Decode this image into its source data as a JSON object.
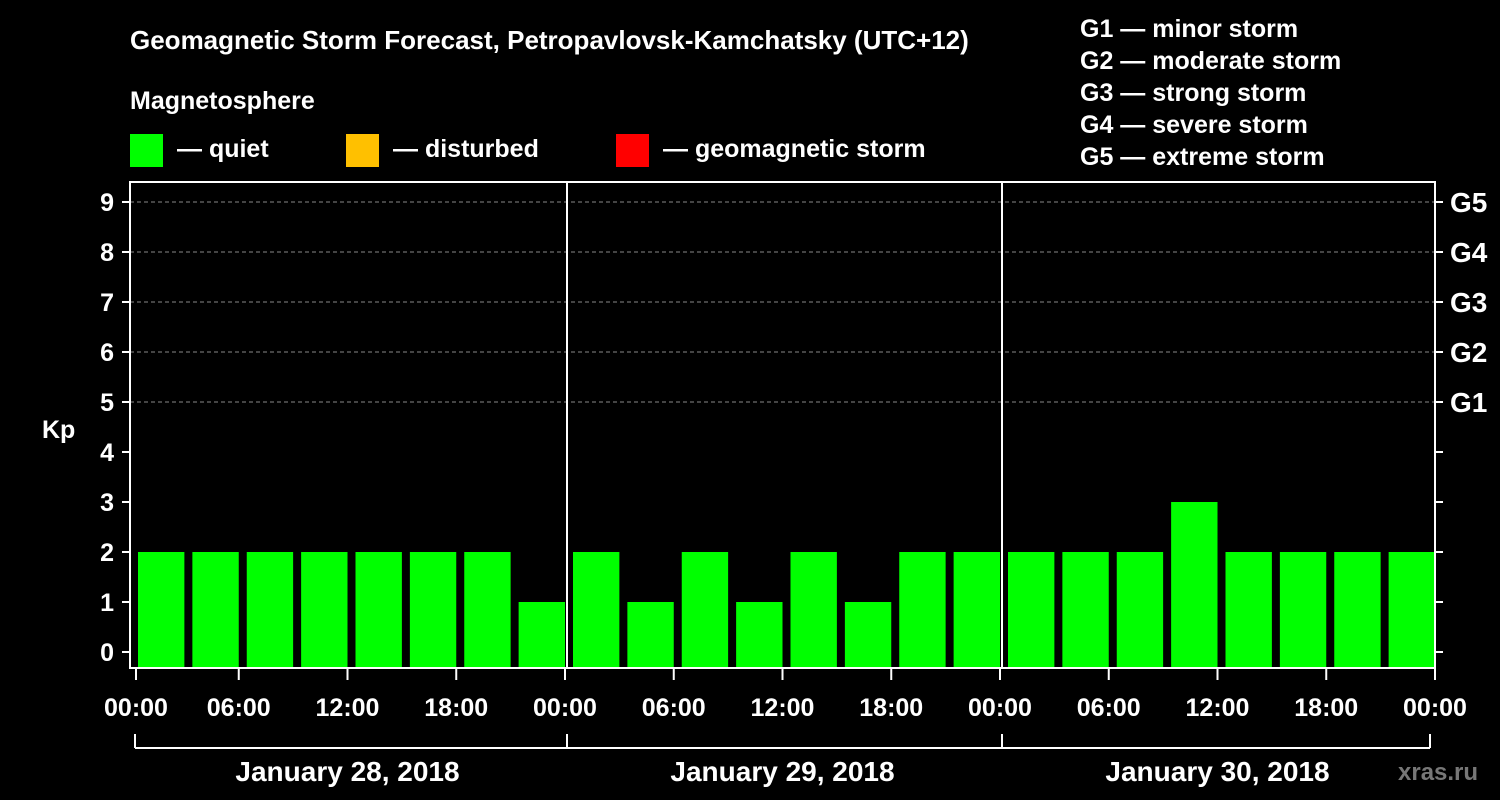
{
  "chart_data": {
    "type": "bar",
    "title": "Geomagnetic Storm Forecast, Petropavlovsk-Kamchatsky (UTC+12)",
    "subtitle": "Magnetosphere",
    "ylabel": "Kp",
    "ylim": [
      0,
      9
    ],
    "y_ticks": [
      "0",
      "1",
      "2",
      "3",
      "4",
      "5",
      "6",
      "7",
      "8",
      "9"
    ],
    "right_ticks": [
      {
        "kp": 5,
        "label": "G1"
      },
      {
        "kp": 6,
        "label": "G2"
      },
      {
        "kp": 7,
        "label": "G3"
      },
      {
        "kp": 8,
        "label": "G4"
      },
      {
        "kp": 9,
        "label": "G5"
      }
    ],
    "legend": [
      {
        "label": "— quiet",
        "color": "#00ff00"
      },
      {
        "label": "— disturbed",
        "color": "#ffc000"
      },
      {
        "label": "— geomagnetic storm",
        "color": "#ff0000"
      }
    ],
    "storm_levels": [
      "G1 — minor storm",
      "G2 — moderate storm",
      "G3 — strong storm",
      "G4 — severe storm",
      "G5 — extreme storm"
    ],
    "x_tick_labels": [
      "00:00",
      "06:00",
      "12:00",
      "18:00",
      "00:00",
      "06:00",
      "12:00",
      "18:00",
      "00:00",
      "06:00",
      "12:00",
      "18:00",
      "00:00"
    ],
    "days": [
      "January 28, 2018",
      "January 29, 2018",
      "January 30, 2018"
    ],
    "values": [
      2,
      2,
      2,
      2,
      2,
      2,
      2,
      1,
      2,
      1,
      2,
      1,
      2,
      1,
      2,
      2,
      2,
      2,
      2,
      3,
      2,
      2,
      2,
      2
    ],
    "bar_color": "#00ff00",
    "grid": true
  },
  "credit": "xras.ru"
}
